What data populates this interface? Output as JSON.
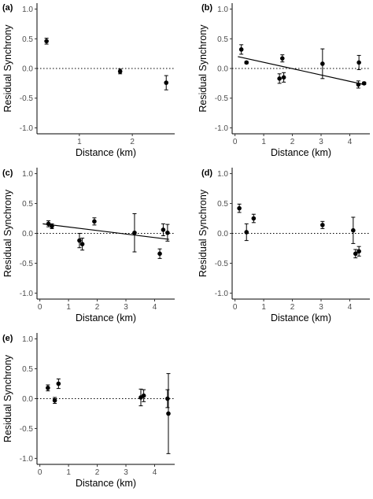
{
  "chart_data": [
    {
      "type": "scatter",
      "panel": "(a)",
      "xlabel": "Distance (km)",
      "ylabel": "Residual Synchrony",
      "xlim": [
        0.2,
        2.8
      ],
      "ylim": [
        -1.1,
        1.1
      ],
      "xticks": [
        1,
        2
      ],
      "yticks": [
        -1.0,
        -0.5,
        0.0,
        0.5,
        1.0
      ],
      "reference_line": 0,
      "points": [
        {
          "x": 0.38,
          "y": 0.46,
          "err": 0.05
        },
        {
          "x": 1.77,
          "y": -0.05,
          "err": 0.04
        },
        {
          "x": 2.64,
          "y": -0.24,
          "err": 0.12
        }
      ]
    },
    {
      "type": "scatter",
      "panel": "(b)",
      "xlabel": "Distance (km)",
      "ylabel": "Residual Synchrony",
      "xlim": [
        -0.1,
        4.7
      ],
      "ylim": [
        -1.1,
        1.1
      ],
      "xticks": [
        0,
        1,
        2,
        3,
        4
      ],
      "yticks": [
        -1.0,
        -0.5,
        0.0,
        0.5,
        1.0
      ],
      "reference_line": 0,
      "trend": {
        "x": [
          0.1,
          4.5
        ],
        "y": [
          0.2,
          -0.27
        ]
      },
      "points": [
        {
          "x": 0.22,
          "y": 0.32,
          "err": 0.08
        },
        {
          "x": 0.4,
          "y": 0.1,
          "err": 0.02
        },
        {
          "x": 1.55,
          "y": -0.17,
          "err": 0.08
        },
        {
          "x": 1.65,
          "y": 0.17,
          "err": 0.06
        },
        {
          "x": 1.7,
          "y": -0.15,
          "err": 0.08
        },
        {
          "x": 3.05,
          "y": 0.08,
          "err": 0.25
        },
        {
          "x": 4.3,
          "y": -0.27,
          "err": 0.06
        },
        {
          "x": 4.32,
          "y": 0.1,
          "err": 0.12
        },
        {
          "x": 4.5,
          "y": -0.25,
          "err": 0.02
        }
      ]
    },
    {
      "type": "scatter",
      "panel": "(c)",
      "xlabel": "Distance (km)",
      "ylabel": "Residual Synchrony",
      "xlim": [
        -0.1,
        4.7
      ],
      "ylim": [
        -1.1,
        1.1
      ],
      "xticks": [
        0,
        1,
        2,
        3,
        4
      ],
      "yticks": [
        -1.0,
        -0.5,
        0.0,
        0.5,
        1.0
      ],
      "reference_line": 0,
      "trend": {
        "x": [
          0.1,
          4.5
        ],
        "y": [
          0.16,
          -0.1
        ]
      },
      "points": [
        {
          "x": 0.3,
          "y": 0.16,
          "err": 0.05
        },
        {
          "x": 0.42,
          "y": 0.12,
          "err": 0.04
        },
        {
          "x": 1.38,
          "y": -0.12,
          "err": 0.12
        },
        {
          "x": 1.48,
          "y": -0.18,
          "err": 0.1
        },
        {
          "x": 1.9,
          "y": 0.2,
          "err": 0.06
        },
        {
          "x": 3.3,
          "y": 0.01,
          "err": 0.32
        },
        {
          "x": 4.18,
          "y": -0.34,
          "err": 0.08
        },
        {
          "x": 4.3,
          "y": 0.06,
          "err": 0.1
        },
        {
          "x": 4.45,
          "y": 0.01,
          "err": 0.14
        }
      ]
    },
    {
      "type": "scatter",
      "panel": "(d)",
      "xlabel": "Distance (km)",
      "ylabel": "Residual Synchrony",
      "xlim": [
        -0.1,
        4.7
      ],
      "ylim": [
        -1.1,
        1.1
      ],
      "xticks": [
        0,
        1,
        2,
        3,
        4
      ],
      "yticks": [
        -1.0,
        -0.5,
        0.0,
        0.5,
        1.0
      ],
      "reference_line": 0,
      "points": [
        {
          "x": 0.15,
          "y": 0.42,
          "err": 0.07
        },
        {
          "x": 0.4,
          "y": 0.02,
          "err": 0.14
        },
        {
          "x": 0.65,
          "y": 0.25,
          "err": 0.07
        },
        {
          "x": 3.05,
          "y": 0.14,
          "err": 0.06
        },
        {
          "x": 4.12,
          "y": 0.05,
          "err": 0.22
        },
        {
          "x": 4.2,
          "y": -0.34,
          "err": 0.07
        },
        {
          "x": 4.32,
          "y": -0.3,
          "err": 0.08
        }
      ]
    },
    {
      "type": "scatter",
      "panel": "(e)",
      "xlabel": "Distance (km)",
      "ylabel": "Residual Synchrony",
      "xlim": [
        -0.1,
        4.7
      ],
      "ylim": [
        -1.1,
        1.1
      ],
      "xticks": [
        0,
        1,
        2,
        3,
        4
      ],
      "yticks": [
        -1.0,
        -0.5,
        0.0,
        0.5,
        1.0
      ],
      "reference_line": 0,
      "points": [
        {
          "x": 0.28,
          "y": 0.18,
          "err": 0.05
        },
        {
          "x": 0.52,
          "y": -0.03,
          "err": 0.05
        },
        {
          "x": 0.65,
          "y": 0.25,
          "err": 0.08
        },
        {
          "x": 3.52,
          "y": 0.02,
          "err": 0.14
        },
        {
          "x": 3.62,
          "y": 0.05,
          "err": 0.1
        },
        {
          "x": 4.45,
          "y": 0.0,
          "err": 0.15
        },
        {
          "x": 4.48,
          "y": -0.25,
          "err": 0.67
        }
      ]
    }
  ]
}
